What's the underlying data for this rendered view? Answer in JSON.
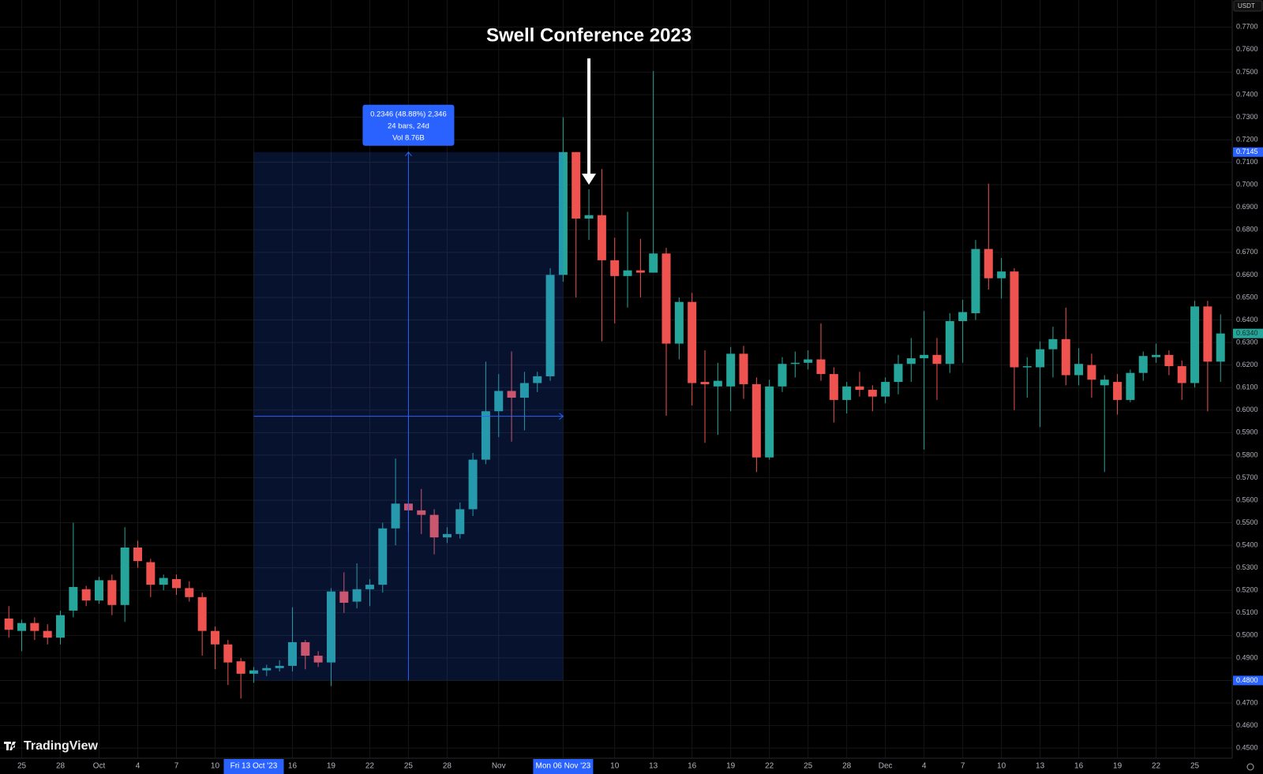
{
  "chart_data": {
    "type": "candlestick",
    "currency": "USDT",
    "watermark": "TradingView",
    "up_color": "#26a69a",
    "down_color": "#ef5350",
    "grid": true,
    "x": [
      "2023-09-24",
      "2023-09-25",
      "2023-09-26",
      "2023-09-27",
      "2023-09-28",
      "2023-09-29",
      "2023-09-30",
      "2023-10-01",
      "2023-10-02",
      "2023-10-03",
      "2023-10-04",
      "2023-10-05",
      "2023-10-06",
      "2023-10-07",
      "2023-10-08",
      "2023-10-09",
      "2023-10-10",
      "2023-10-11",
      "2023-10-12",
      "2023-10-13",
      "2023-10-14",
      "2023-10-15",
      "2023-10-16",
      "2023-10-17",
      "2023-10-18",
      "2023-10-19",
      "2023-10-20",
      "2023-10-21",
      "2023-10-22",
      "2023-10-23",
      "2023-10-24",
      "2023-10-25",
      "2023-10-26",
      "2023-10-27",
      "2023-10-28",
      "2023-10-29",
      "2023-10-30",
      "2023-10-31",
      "2023-11-01",
      "2023-11-02",
      "2023-11-03",
      "2023-11-04",
      "2023-11-05",
      "2023-11-06",
      "2023-11-07",
      "2023-11-08",
      "2023-11-09",
      "2023-11-10",
      "2023-11-11",
      "2023-11-12",
      "2023-11-13",
      "2023-11-14",
      "2023-11-15",
      "2023-11-16",
      "2023-11-17",
      "2023-11-18",
      "2023-11-19",
      "2023-11-20",
      "2023-11-21",
      "2023-11-22",
      "2023-11-23",
      "2023-11-24",
      "2023-11-25",
      "2023-11-26",
      "2023-11-27",
      "2023-11-28",
      "2023-11-29",
      "2023-11-30",
      "2023-12-01",
      "2023-12-02",
      "2023-12-03",
      "2023-12-04",
      "2023-12-05",
      "2023-12-06",
      "2023-12-07",
      "2023-12-08",
      "2023-12-09",
      "2023-12-10",
      "2023-12-11",
      "2023-12-12",
      "2023-12-13",
      "2023-12-14",
      "2023-12-15",
      "2023-12-16",
      "2023-12-17",
      "2023-12-18",
      "2023-12-19",
      "2023-12-20",
      "2023-12-21",
      "2023-12-22",
      "2023-12-23",
      "2023-12-24",
      "2023-12-25",
      "2023-12-26",
      "2023-12-27"
    ],
    "open": [
      0.5075,
      0.502,
      0.5055,
      0.502,
      0.499,
      0.511,
      0.5205,
      0.5155,
      0.5245,
      0.5135,
      0.539,
      0.5325,
      0.5225,
      0.525,
      0.521,
      0.517,
      0.502,
      0.496,
      0.4885,
      0.483,
      0.4845,
      0.4855,
      0.4865,
      0.497,
      0.491,
      0.488,
      0.5195,
      0.515,
      0.5205,
      0.5225,
      0.5475,
      0.5585,
      0.5555,
      0.5535,
      0.5435,
      0.545,
      0.556,
      0.578,
      0.5995,
      0.6085,
      0.6055,
      0.612,
      0.615,
      0.66,
      0.7145,
      0.685,
      0.6865,
      0.6665,
      0.6595,
      0.662,
      0.661,
      0.6695,
      0.6295,
      0.648,
      0.6125,
      0.6105,
      0.6105,
      0.625,
      0.6115,
      0.579,
      0.6105,
      0.6205,
      0.621,
      0.6225,
      0.616,
      0.6045,
      0.6105,
      0.609,
      0.606,
      0.6125,
      0.6205,
      0.623,
      0.6245,
      0.6205,
      0.6395,
      0.643,
      0.6715,
      0.6585,
      0.6615,
      0.619,
      0.619,
      0.627,
      0.6315,
      0.6155,
      0.62,
      0.611,
      0.6125,
      0.6045,
      0.6165,
      0.6235,
      0.6245,
      0.6195,
      0.612,
      0.646,
      0.6215
    ],
    "high": [
      0.513,
      0.507,
      0.508,
      0.505,
      0.511,
      0.55,
      0.522,
      0.526,
      0.527,
      0.548,
      0.542,
      0.534,
      0.527,
      0.527,
      0.524,
      0.519,
      0.504,
      0.498,
      0.49,
      0.486,
      0.487,
      0.489,
      0.5125,
      0.498,
      0.493,
      0.521,
      0.528,
      0.532,
      0.525,
      0.55,
      0.5785,
      0.56,
      0.565,
      0.556,
      0.548,
      0.559,
      0.581,
      0.6215,
      0.616,
      0.626,
      0.617,
      0.617,
      0.663,
      0.73,
      0.7145,
      0.698,
      0.707,
      0.6765,
      0.688,
      0.676,
      0.7505,
      0.672,
      0.65,
      0.652,
      0.6265,
      0.621,
      0.628,
      0.6285,
      0.6145,
      0.6135,
      0.6235,
      0.626,
      0.6265,
      0.6385,
      0.619,
      0.6125,
      0.617,
      0.611,
      0.6145,
      0.6245,
      0.632,
      0.644,
      0.632,
      0.643,
      0.649,
      0.6755,
      0.7005,
      0.6675,
      0.663,
      0.6235,
      0.6305,
      0.637,
      0.6455,
      0.6275,
      0.625,
      0.6155,
      0.616,
      0.618,
      0.626,
      0.6295,
      0.6265,
      0.622,
      0.6485,
      0.6485,
      0.6425
    ],
    "low": [
      0.499,
      0.493,
      0.498,
      0.496,
      0.496,
      0.508,
      0.513,
      0.514,
      0.509,
      0.506,
      0.53,
      0.517,
      0.52,
      0.518,
      0.515,
      0.491,
      0.485,
      0.478,
      0.472,
      0.479,
      0.482,
      0.484,
      0.484,
      0.485,
      0.486,
      0.4775,
      0.51,
      0.512,
      0.513,
      0.519,
      0.54,
      0.546,
      0.545,
      0.536,
      0.541,
      0.543,
      0.553,
      0.576,
      0.588,
      0.586,
      0.591,
      0.608,
      0.613,
      0.657,
      0.65,
      0.6755,
      0.6305,
      0.6385,
      0.6455,
      0.65,
      0.6635,
      0.5975,
      0.6225,
      0.602,
      0.5855,
      0.589,
      0.5995,
      0.605,
      0.5725,
      0.578,
      0.608,
      0.6145,
      0.618,
      0.613,
      0.5945,
      0.5985,
      0.606,
      0.5995,
      0.603,
      0.607,
      0.6125,
      0.5825,
      0.6045,
      0.6165,
      0.621,
      0.64,
      0.6535,
      0.6495,
      0.6,
      0.6055,
      0.5925,
      0.6145,
      0.611,
      0.611,
      0.6055,
      0.5725,
      0.598,
      0.6035,
      0.613,
      0.621,
      0.6155,
      0.6045,
      0.61,
      0.5995,
      0.6125
    ],
    "close": [
      0.5025,
      0.5055,
      0.502,
      0.499,
      0.509,
      0.5215,
      0.5155,
      0.5245,
      0.5135,
      0.539,
      0.533,
      0.5225,
      0.5255,
      0.521,
      0.517,
      0.502,
      0.496,
      0.488,
      0.483,
      0.4845,
      0.4855,
      0.4865,
      0.497,
      0.491,
      0.488,
      0.5195,
      0.5145,
      0.5205,
      0.5225,
      0.5475,
      0.5585,
      0.5555,
      0.5535,
      0.5435,
      0.545,
      0.556,
      0.578,
      0.5995,
      0.6085,
      0.6055,
      0.612,
      0.615,
      0.66,
      0.7145,
      0.685,
      0.6865,
      0.6665,
      0.6595,
      0.662,
      0.661,
      0.6695,
      0.6295,
      0.648,
      0.612,
      0.6115,
      0.613,
      0.625,
      0.6115,
      0.579,
      0.6105,
      0.6205,
      0.621,
      0.6225,
      0.616,
      0.6045,
      0.6105,
      0.609,
      0.606,
      0.6125,
      0.6205,
      0.623,
      0.6245,
      0.6205,
      0.6395,
      0.6435,
      0.6715,
      0.6585,
      0.6615,
      0.619,
      0.6195,
      0.627,
      0.6315,
      0.6155,
      0.6205,
      0.6135,
      0.6135,
      0.6045,
      0.6165,
      0.624,
      0.6245,
      0.6195,
      0.612,
      0.646,
      0.6215,
      0.634
    ],
    "ylim": [
      0.4455,
      0.782
    ],
    "yticks": [
      {
        "value": 0.45,
        "label": "0.4500"
      },
      {
        "value": 0.46,
        "label": "0.4600"
      },
      {
        "value": 0.47,
        "label": "0.4700"
      },
      {
        "value": 0.48,
        "label": "0.4800"
      },
      {
        "value": 0.49,
        "label": "0.4900"
      },
      {
        "value": 0.5,
        "label": "0.5000"
      },
      {
        "value": 0.51,
        "label": "0.5100"
      },
      {
        "value": 0.52,
        "label": "0.5200"
      },
      {
        "value": 0.53,
        "label": "0.5300"
      },
      {
        "value": 0.54,
        "label": "0.5400"
      },
      {
        "value": 0.55,
        "label": "0.5500"
      },
      {
        "value": 0.56,
        "label": "0.5600"
      },
      {
        "value": 0.57,
        "label": "0.5700"
      },
      {
        "value": 0.58,
        "label": "0.5800"
      },
      {
        "value": 0.59,
        "label": "0.5900"
      },
      {
        "value": 0.6,
        "label": "0.6000"
      },
      {
        "value": 0.61,
        "label": "0.6100"
      },
      {
        "value": 0.62,
        "label": "0.6200"
      },
      {
        "value": 0.63,
        "label": "0.6300"
      },
      {
        "value": 0.64,
        "label": "0.6400"
      },
      {
        "value": 0.65,
        "label": "0.6500"
      },
      {
        "value": 0.66,
        "label": "0.6600"
      },
      {
        "value": 0.67,
        "label": "0.6700"
      },
      {
        "value": 0.68,
        "label": "0.6800"
      },
      {
        "value": 0.69,
        "label": "0.6900"
      },
      {
        "value": 0.7,
        "label": "0.7000"
      },
      {
        "value": 0.71,
        "label": "0.7100"
      },
      {
        "value": 0.72,
        "label": "0.7200"
      },
      {
        "value": 0.73,
        "label": "0.7300"
      },
      {
        "value": 0.74,
        "label": "0.7400"
      },
      {
        "value": 0.75,
        "label": "0.7500"
      },
      {
        "value": 0.76,
        "label": "0.7600"
      },
      {
        "value": 0.77,
        "label": "0.7700"
      }
    ],
    "xticks": [
      {
        "value": "2023-09-25",
        "label": "25"
      },
      {
        "value": "2023-09-28",
        "label": "28"
      },
      {
        "value": "2023-10-01",
        "label": "Oct"
      },
      {
        "value": "2023-10-04",
        "label": "4"
      },
      {
        "value": "2023-10-07",
        "label": "7"
      },
      {
        "value": "2023-10-10",
        "label": "10"
      },
      {
        "value": "2023-10-16",
        "label": "16"
      },
      {
        "value": "2023-10-19",
        "label": "19"
      },
      {
        "value": "2023-10-22",
        "label": "22"
      },
      {
        "value": "2023-10-25",
        "label": "25"
      },
      {
        "value": "2023-10-28",
        "label": "28"
      },
      {
        "value": "2023-11-01",
        "label": "Nov"
      },
      {
        "value": "2023-11-10",
        "label": "10"
      },
      {
        "value": "2023-11-13",
        "label": "13"
      },
      {
        "value": "2023-11-16",
        "label": "16"
      },
      {
        "value": "2023-11-19",
        "label": "19"
      },
      {
        "value": "2023-11-22",
        "label": "22"
      },
      {
        "value": "2023-11-25",
        "label": "25"
      },
      {
        "value": "2023-11-28",
        "label": "28"
      },
      {
        "value": "2023-12-01",
        "label": "Dec"
      },
      {
        "value": "2023-12-04",
        "label": "4"
      },
      {
        "value": "2023-12-07",
        "label": "7"
      },
      {
        "value": "2023-12-10",
        "label": "10"
      },
      {
        "value": "2023-12-13",
        "label": "13"
      },
      {
        "value": "2023-12-16",
        "label": "16"
      },
      {
        "value": "2023-12-19",
        "label": "19"
      },
      {
        "value": "2023-12-22",
        "label": "22"
      },
      {
        "value": "2023-12-25",
        "label": "25"
      }
    ],
    "measure": {
      "start": {
        "value": "2023-10-13",
        "label": "Fri 13 Oct '23"
      },
      "end": {
        "value": "2023-11-06",
        "label": "Mon 06 Nov '23"
      },
      "high": 0.7145,
      "low": {
        "value": 0.48,
        "label": "0.4800"
      },
      "info": [
        "0.2346 (48.88%) 2,346",
        "24 bars, 24d",
        "Vol 8.76B"
      ]
    },
    "last_price": {
      "value": 0.634,
      "label": "0.6340"
    },
    "annotation": {
      "text": "Swell Conference 2023",
      "x": "2023-11-08",
      "y": 0.7
    }
  }
}
